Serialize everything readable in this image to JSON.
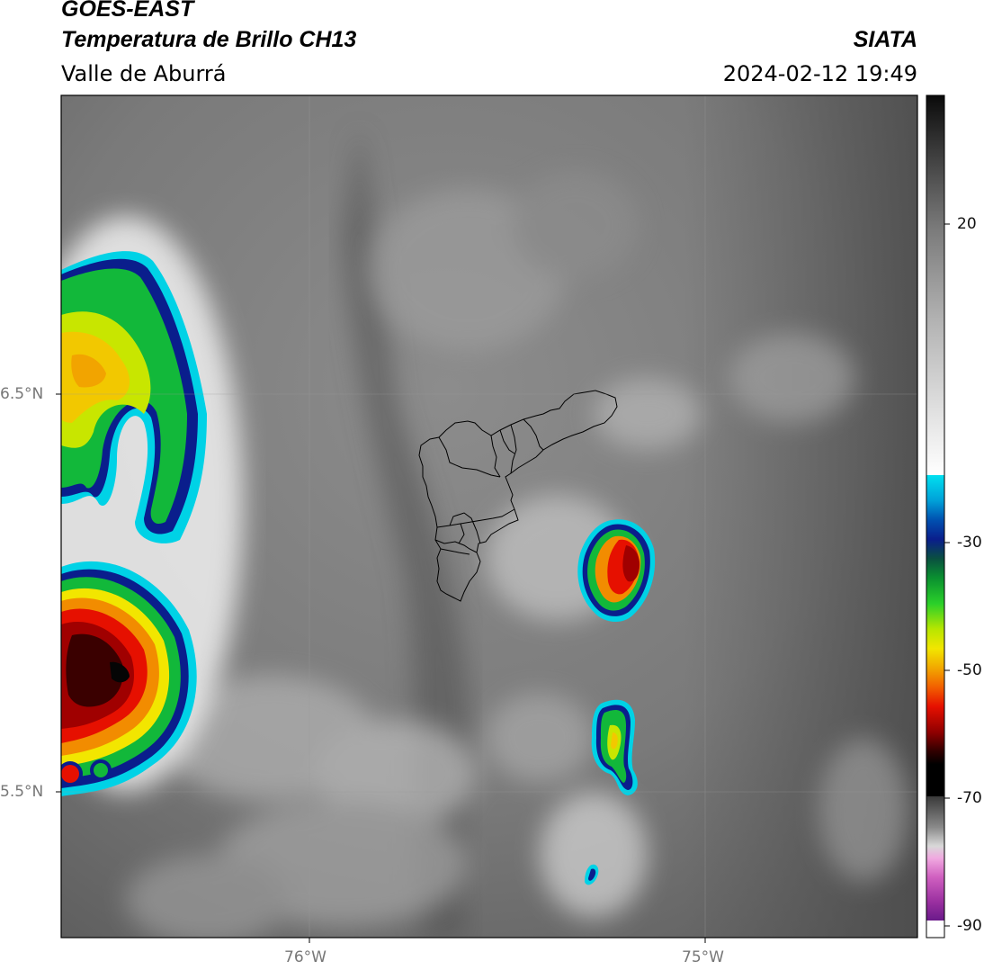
{
  "header": {
    "satellite": "GOES-EAST",
    "product": "Temperatura de Brillo CH13",
    "region": "Valle de Aburrá",
    "brand": "SIATA",
    "datetime": "2024-02-12 19:49"
  },
  "map": {
    "lat_ticks": [
      "6.5°N",
      "5.5°N"
    ],
    "lon_ticks": [
      "76°W",
      "75°W"
    ],
    "extent": {
      "lon": [
        -76.62,
        -74.47
      ],
      "lat": [
        5.13,
        7.25
      ]
    }
  },
  "colorbar": {
    "ticks": [
      "20",
      "-30",
      "-50",
      "-70",
      "-90"
    ],
    "unit_range": [
      -95,
      35
    ],
    "colors": {
      "warm_gray": "#6a6a6a",
      "light_gray": "#f2f2f2",
      "cyan": "#00d2e6",
      "navy": "#0a1e8c",
      "green": "#12b83a",
      "yellow": "#f2e600",
      "orange": "#f28c00",
      "red": "#e61000",
      "dark_red": "#3a0000",
      "magenta": "#e060c8",
      "purple": "#6a1a8a"
    }
  },
  "storms": [
    {
      "id": "west-large",
      "description_tags": [
        "green",
        "yellow",
        "red",
        "dark-red core"
      ]
    },
    {
      "id": "east-cell",
      "description_tags": [
        "green",
        "red core"
      ]
    },
    {
      "id": "south-cell",
      "description_tags": [
        "green",
        "yellow"
      ]
    }
  ]
}
